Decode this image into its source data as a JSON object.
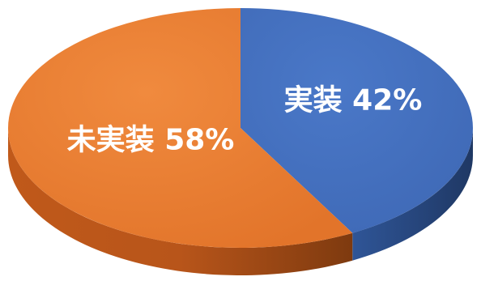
{
  "chart_data": {
    "type": "pie",
    "slices": [
      {
        "label": "実装",
        "value": 42,
        "value_text": "42%",
        "color": "#4472c4"
      },
      {
        "label": "未実装",
        "value": 58,
        "value_text": "58%",
        "color": "#ed7d31"
      }
    ],
    "legend": "none",
    "style": "3d-tilted"
  }
}
